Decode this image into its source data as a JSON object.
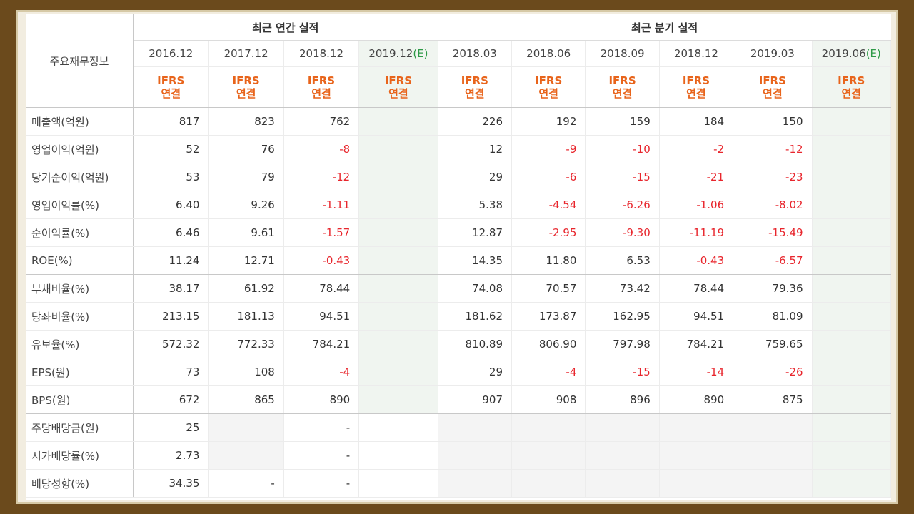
{
  "table": {
    "title": "주요재무정보",
    "annual_header": "최근 연간 실적",
    "quarter_header": "최근 분기 실적",
    "periods": [
      {
        "date": "2016.12",
        "est": ""
      },
      {
        "date": "2017.12",
        "est": ""
      },
      {
        "date": "2018.12",
        "est": ""
      },
      {
        "date": "2019.12",
        "est": "(E)"
      },
      {
        "date": "2018.03",
        "est": ""
      },
      {
        "date": "2018.06",
        "est": ""
      },
      {
        "date": "2018.09",
        "est": ""
      },
      {
        "date": "2018.12",
        "est": ""
      },
      {
        "date": "2019.03",
        "est": ""
      },
      {
        "date": "2019.06",
        "est": "(E)"
      }
    ],
    "ifrs_top": "IFRS",
    "ifrs_bottom": "연결",
    "rows": [
      {
        "label": "매출액(억원)",
        "values": [
          "817",
          "823",
          "762",
          "",
          "226",
          "192",
          "159",
          "184",
          "150",
          ""
        ]
      },
      {
        "label": "영업이익(억원)",
        "values": [
          "52",
          "76",
          "-8",
          "",
          "12",
          "-9",
          "-10",
          "-2",
          "-12",
          ""
        ]
      },
      {
        "label": "당기순이익(억원)",
        "values": [
          "53",
          "79",
          "-12",
          "",
          "29",
          "-6",
          "-15",
          "-21",
          "-23",
          ""
        ]
      },
      {
        "label": "영업이익률(%)",
        "values": [
          "6.40",
          "9.26",
          "-1.11",
          "",
          "5.38",
          "-4.54",
          "-6.26",
          "-1.06",
          "-8.02",
          ""
        ]
      },
      {
        "label": "순이익률(%)",
        "values": [
          "6.46",
          "9.61",
          "-1.57",
          "",
          "12.87",
          "-2.95",
          "-9.30",
          "-11.19",
          "-15.49",
          ""
        ]
      },
      {
        "label": "ROE(%)",
        "values": [
          "11.24",
          "12.71",
          "-0.43",
          "",
          "14.35",
          "11.80",
          "6.53",
          "-0.43",
          "-6.57",
          ""
        ]
      },
      {
        "label": "부채비율(%)",
        "values": [
          "38.17",
          "61.92",
          "78.44",
          "",
          "74.08",
          "70.57",
          "73.42",
          "78.44",
          "79.36",
          ""
        ]
      },
      {
        "label": "당좌비율(%)",
        "values": [
          "213.15",
          "181.13",
          "94.51",
          "",
          "181.62",
          "173.87",
          "162.95",
          "94.51",
          "81.09",
          ""
        ]
      },
      {
        "label": "유보율(%)",
        "values": [
          "572.32",
          "772.33",
          "784.21",
          "",
          "810.89",
          "806.90",
          "797.98",
          "784.21",
          "759.65",
          ""
        ]
      },
      {
        "label": "EPS(원)",
        "values": [
          "73",
          "108",
          "-4",
          "",
          "29",
          "-4",
          "-15",
          "-14",
          "-26",
          ""
        ]
      },
      {
        "label": "BPS(원)",
        "values": [
          "672",
          "865",
          "890",
          "",
          "907",
          "908",
          "896",
          "890",
          "875",
          ""
        ]
      },
      {
        "label": "주당배당금(원)",
        "values": [
          "25",
          "",
          "-",
          "",
          "",
          "",
          "",
          "",
          "",
          ""
        ]
      },
      {
        "label": "시가배당률(%)",
        "values": [
          "2.73",
          "",
          "-",
          "",
          "",
          "",
          "",
          "",
          "",
          ""
        ]
      },
      {
        "label": "배당성향(%)",
        "values": [
          "34.35",
          "-",
          "-",
          "",
          "",
          "",
          "",
          "",
          "",
          ""
        ]
      }
    ]
  }
}
